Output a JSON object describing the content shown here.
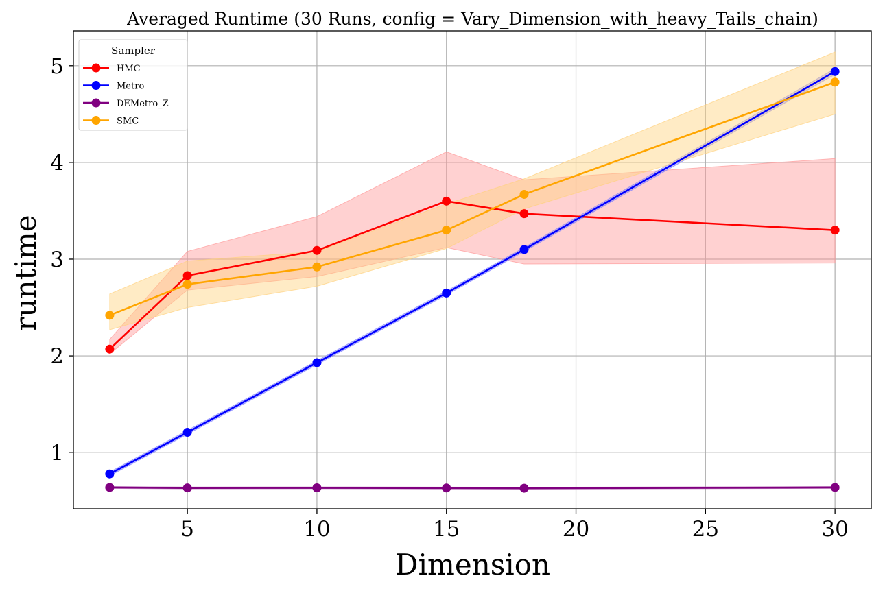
{
  "chart_data": {
    "type": "line",
    "title": "Averaged Runtime (30 Runs, config = Vary_Dimension_with_heavy_Tails_chain)",
    "xlabel": "Dimension",
    "ylabel": "runtime",
    "xlim": [
      0.6,
      31.4
    ],
    "ylim": [
      0.42,
      5.36
    ],
    "xticks": [
      "5",
      "10",
      "15",
      "20",
      "25",
      "30"
    ],
    "yticks": [
      "1",
      "2",
      "3",
      "4",
      "5"
    ],
    "grid": true,
    "legend": {
      "title": "Sampler",
      "placement": "top-left"
    },
    "x": [
      2,
      5,
      10,
      15,
      18,
      30
    ],
    "series": [
      {
        "name": "HMC",
        "color": "#ff0000",
        "band_color": "#ff9999",
        "values": [
          2.07,
          2.83,
          3.09,
          3.6,
          3.47,
          3.3
        ],
        "lower": [
          2.02,
          2.68,
          2.82,
          3.12,
          2.95,
          2.96
        ],
        "upper": [
          2.17,
          3.08,
          3.44,
          4.11,
          3.82,
          4.04
        ]
      },
      {
        "name": "Metro",
        "color": "#0000ff",
        "band_color": "#8080ff",
        "values": [
          0.78,
          1.21,
          1.93,
          2.65,
          3.1,
          4.94
        ],
        "lower": [
          0.76,
          1.19,
          1.91,
          2.63,
          3.08,
          4.91
        ],
        "upper": [
          0.8,
          1.23,
          1.95,
          2.67,
          3.12,
          4.97
        ]
      },
      {
        "name": "DEMetro_Z",
        "color": "#800080",
        "band_color": "#c080c0",
        "values": [
          0.64,
          0.635,
          0.636,
          0.634,
          0.632,
          0.64
        ],
        "lower": [
          0.63,
          0.625,
          0.626,
          0.624,
          0.622,
          0.63
        ],
        "upper": [
          0.65,
          0.645,
          0.646,
          0.644,
          0.642,
          0.65
        ]
      },
      {
        "name": "SMC",
        "color": "#ffa500",
        "band_color": "#ffd27f",
        "values": [
          2.42,
          2.74,
          2.92,
          3.3,
          3.67,
          4.83
        ],
        "lower": [
          2.27,
          2.5,
          2.72,
          3.11,
          3.52,
          4.5
        ],
        "upper": [
          2.64,
          2.98,
          3.08,
          3.57,
          3.83,
          5.14
        ]
      }
    ]
  }
}
